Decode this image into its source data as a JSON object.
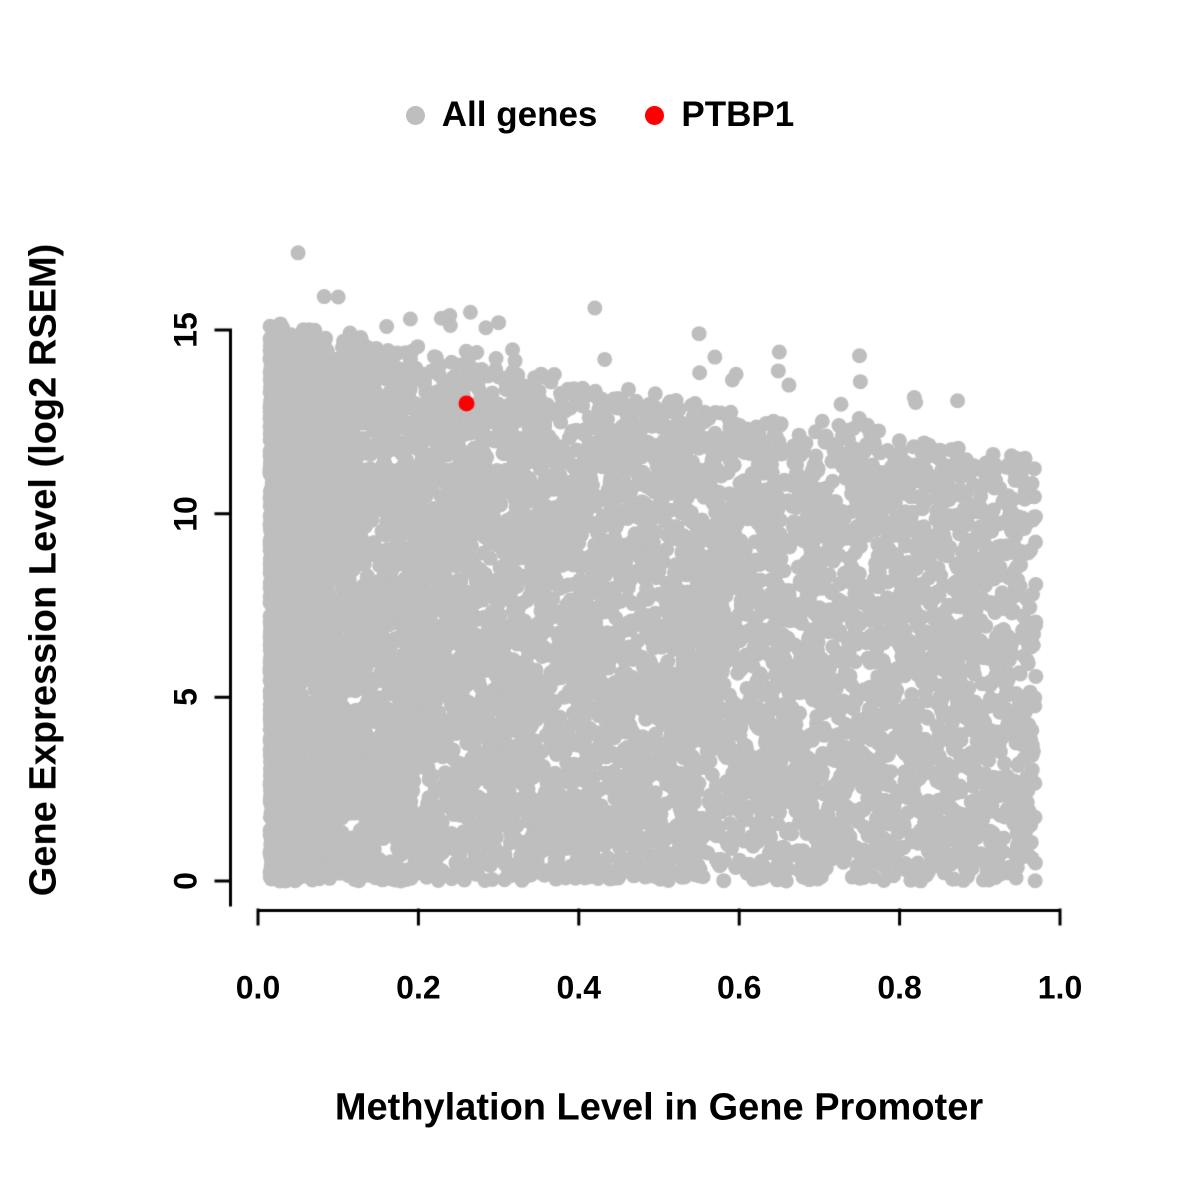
{
  "chart_data": {
    "type": "scatter",
    "title": "",
    "xlabel": "Methylation Level in Gene Promoter",
    "ylabel": "Gene Expression Level (log2 RSEM)",
    "xlim": [
      0.0,
      1.0
    ],
    "ylim": [
      0,
      15
    ],
    "grid": false,
    "legend_position": "top-center",
    "axis_color": "#000000",
    "point_radius_px": 7.5,
    "x_ticks": [
      {
        "v": 0.0,
        "label": "0.0"
      },
      {
        "v": 0.2,
        "label": "0.2"
      },
      {
        "v": 0.4,
        "label": "0.4"
      },
      {
        "v": 0.6,
        "label": "0.6"
      },
      {
        "v": 0.8,
        "label": "0.8"
      },
      {
        "v": 1.0,
        "label": "1.0"
      }
    ],
    "y_ticks": [
      {
        "v": 0,
        "label": "0"
      },
      {
        "v": 5,
        "label": "5"
      },
      {
        "v": 10,
        "label": "10"
      },
      {
        "v": 15,
        "label": "15"
      }
    ],
    "legend": [
      {
        "label": "All genes",
        "color": "#BEBEBE"
      },
      {
        "label": "PTBP1",
        "color": "#FF0000"
      }
    ],
    "series": [
      {
        "name": "All genes",
        "color": "#BEBEBE",
        "style": "dense-cloud",
        "n_points": 9000,
        "generator": {
          "seed": 20240613,
          "x_min": 0.015,
          "x_max": 0.97,
          "x_power": 1.7,
          "env_intercept": 14.9,
          "env_slope": -3.7,
          "env_noise": 0.5,
          "outliers_n": 28,
          "outliers_extra": 1.6
        },
        "notable_outliers": [
          [
            0.05,
            17.1
          ],
          [
            0.1,
            15.9
          ],
          [
            0.19,
            15.3
          ],
          [
            0.3,
            15.2
          ],
          [
            0.42,
            15.6
          ],
          [
            0.55,
            14.9
          ],
          [
            0.65,
            14.4
          ],
          [
            0.75,
            14.3
          ]
        ]
      },
      {
        "name": "PTBP1",
        "color": "#FF0000",
        "points": [
          [
            0.26,
            13.0
          ]
        ]
      }
    ]
  }
}
